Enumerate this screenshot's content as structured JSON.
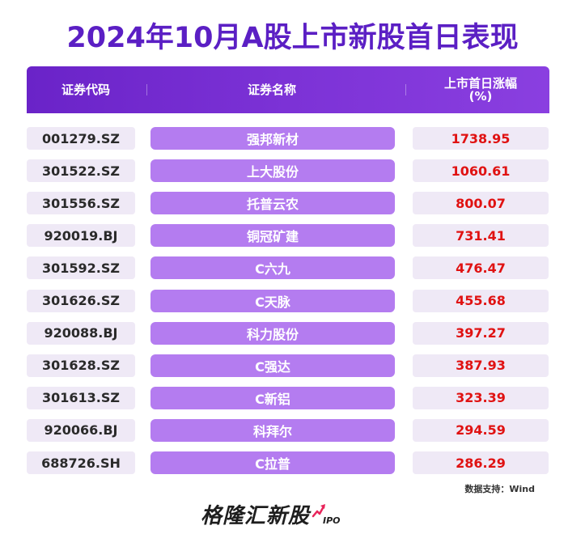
{
  "title": "2024年10月A股上市新股首日表现",
  "table": {
    "headers": {
      "code": "证券代码",
      "name": "证券名称",
      "pct_line1": "上市首日涨幅",
      "pct_line2": "(%)"
    },
    "rows": [
      {
        "code": "001279.SZ",
        "name": "强邦新材",
        "pct": "1738.95"
      },
      {
        "code": "301522.SZ",
        "name": "上大股份",
        "pct": "1060.61"
      },
      {
        "code": "301556.SZ",
        "name": "托普云农",
        "pct": "800.07"
      },
      {
        "code": "920019.BJ",
        "name": "铜冠矿建",
        "pct": "731.41"
      },
      {
        "code": "301592.SZ",
        "name": "C六九",
        "pct": "476.47"
      },
      {
        "code": "301626.SZ",
        "name": "C天脉",
        "pct": "455.68"
      },
      {
        "code": "920088.BJ",
        "name": "科力股份",
        "pct": "397.27"
      },
      {
        "code": "301628.SZ",
        "name": "C强达",
        "pct": "387.93"
      },
      {
        "code": "301613.SZ",
        "name": "C新铝",
        "pct": "323.39"
      },
      {
        "code": "920066.BJ",
        "name": "科拜尔",
        "pct": "294.59"
      },
      {
        "code": "688726.SH",
        "name": "C拉普",
        "pct": "286.29"
      }
    ]
  },
  "source": "数据支持：Wind",
  "logo": {
    "text": "格隆汇新股",
    "sub": "IPO",
    "icon": "trend-arrow-icon"
  },
  "colors": {
    "title": "#5b1fc4",
    "header": "#7c32d6",
    "name_cell": "#b47cf0",
    "pct_text": "#e01212",
    "cell_bg": "#efe9f6"
  }
}
